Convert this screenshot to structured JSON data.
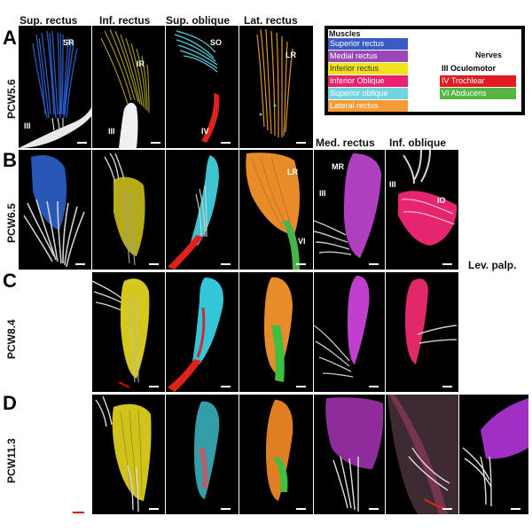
{
  "columns": [
    "Sup. rectus",
    "Inf. rectus",
    "Sup. oblique",
    "Lat. rectus",
    "Med. rectus",
    "Inf. oblique",
    "Lev. palp."
  ],
  "rows": [
    {
      "letter": "A",
      "stage": "PCW5.6"
    },
    {
      "letter": "B",
      "stage": "PCW6.5"
    },
    {
      "letter": "C",
      "stage": "PCW8.4"
    },
    {
      "letter": "D",
      "stage": "PCW11.3"
    }
  ],
  "panel_labels": {
    "a_sr": "SR",
    "a_sr_nerve": "III",
    "a_ir": "IR",
    "a_ir_nerve": "III",
    "a_so": "SO",
    "a_so_nerve": "IV",
    "a_lr": "LR",
    "b_lr": "LR",
    "b_lr_nerve": "VI",
    "b_mr": "MR",
    "b_mr_nerve": "III",
    "b_io_nerve": "III",
    "b_io": "IO"
  },
  "legend": {
    "muscles_title": "Muscles",
    "nerves_title": "Nerves",
    "muscles": [
      {
        "label": "Superior rectus",
        "color": "#3b5bc4"
      },
      {
        "label": "Medial rectus",
        "color": "#9a48b6"
      },
      {
        "label": "Inferior rectus",
        "color": "#f2e21a"
      },
      {
        "label": "Inferior Oblique",
        "color": "#e8226e"
      },
      {
        "label": "Superior oblique",
        "color": "#74d3e0"
      },
      {
        "label": "Lateral rectus",
        "color": "#f59a35"
      }
    ],
    "nerves": [
      {
        "label": "III Oculomotor",
        "color": "#ffffff",
        "text": "#000000"
      },
      {
        "label": "IV Trochlear",
        "color": "#e11b22",
        "text": "#ffffff"
      },
      {
        "label": "VI Abducens",
        "color": "#55b545",
        "text": "#ffffff"
      }
    ]
  }
}
